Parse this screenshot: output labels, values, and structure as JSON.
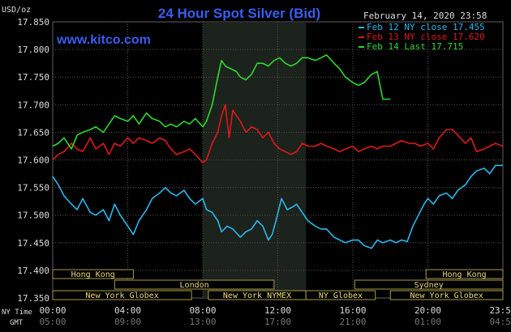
{
  "chart_data": {
    "type": "line",
    "title": "24 Hour Spot Silver (Bid)",
    "ylabel": "USD/oz",
    "date": "February 14, 2020 23:58",
    "watermark": "www.kitco.com",
    "ylim": [
      17.35,
      17.85
    ],
    "xlim": [
      0,
      24
    ],
    "grid": true,
    "legend_position": "top-right",
    "yticks": [
      "17.850",
      "17.800",
      "17.750",
      "17.700",
      "17.650",
      "17.600",
      "17.550",
      "17.500",
      "17.450",
      "17.400",
      "17.350"
    ],
    "xticks_ny": [
      "00:00",
      "04:00",
      "08:00",
      "12:00",
      "16:00",
      "20:00",
      "23:59"
    ],
    "xticks_gmt": [
      "05:00",
      "09:00",
      "13:00",
      "17:00",
      "21:00",
      "01:00",
      "04:59"
    ],
    "xtick_labels": {
      "ny": "NY Time",
      "gmt": "GMT"
    },
    "series": [
      {
        "name": "Feb 12 NY close 17.455",
        "color": "#29b8ec",
        "x": [
          0,
          0.3,
          0.6,
          1,
          1.3,
          1.6,
          2,
          2.3,
          2.7,
          3,
          3.3,
          3.6,
          4,
          4.3,
          4.6,
          5,
          5.3,
          5.7,
          6,
          6.3,
          6.6,
          7,
          7.3,
          7.6,
          8,
          8.2,
          8.5,
          8.8,
          9,
          9.3,
          9.6,
          10,
          10.3,
          10.6,
          10.9,
          11.2,
          11.5,
          11.7,
          11.9,
          12.2,
          12.5,
          12.8,
          13,
          13.3,
          13.6,
          14,
          14.3,
          14.6,
          15,
          15.3,
          15.6,
          16,
          16.3,
          16.6,
          17,
          17.3,
          17.6,
          18,
          18.3,
          18.6,
          18.9,
          19.2,
          19.5,
          19.8,
          20,
          20.3,
          20.6,
          21,
          21.3,
          21.6,
          22,
          22.3,
          22.6,
          23,
          23.3,
          23.6,
          23.99
        ],
        "values": [
          17.57,
          17.555,
          17.535,
          17.52,
          17.51,
          17.53,
          17.505,
          17.5,
          17.51,
          17.49,
          17.52,
          17.5,
          17.48,
          17.465,
          17.49,
          17.51,
          17.53,
          17.54,
          17.55,
          17.54,
          17.535,
          17.545,
          17.53,
          17.52,
          17.53,
          17.51,
          17.505,
          17.49,
          17.47,
          17.48,
          17.475,
          17.46,
          17.47,
          17.475,
          17.49,
          17.48,
          17.455,
          17.465,
          17.49,
          17.53,
          17.51,
          17.515,
          17.52,
          17.505,
          17.49,
          17.48,
          17.475,
          17.475,
          17.46,
          17.455,
          17.45,
          17.455,
          17.455,
          17.445,
          17.44,
          17.455,
          17.45,
          17.455,
          17.45,
          17.455,
          17.452,
          17.48,
          17.5,
          17.52,
          17.53,
          17.52,
          17.535,
          17.54,
          17.53,
          17.545,
          17.555,
          17.57,
          17.58,
          17.585,
          17.575,
          17.59,
          17.59
        ]
      },
      {
        "name": "Feb 13 NY close 17.620",
        "color": "#e01818",
        "x": [
          0,
          0.3,
          0.6,
          1,
          1.3,
          1.6,
          2,
          2.3,
          2.7,
          3,
          3.3,
          3.6,
          4,
          4.3,
          4.6,
          5,
          5.3,
          5.7,
          6,
          6.3,
          6.6,
          7,
          7.3,
          7.6,
          8,
          8.2,
          8.5,
          8.8,
          9,
          9.2,
          9.4,
          9.6,
          9.8,
          10,
          10.3,
          10.6,
          10.9,
          11.2,
          11.5,
          11.8,
          12.1,
          12.4,
          12.7,
          13,
          13.3,
          13.6,
          14,
          14.3,
          14.6,
          15,
          15.3,
          15.6,
          16,
          16.3,
          16.6,
          17,
          17.3,
          17.6,
          18,
          18.3,
          18.6,
          19,
          19.3,
          19.6,
          20,
          20.3,
          20.6,
          21,
          21.3,
          21.6,
          22,
          22.3,
          22.6,
          23,
          23.3,
          23.6,
          23.99
        ],
        "values": [
          17.6,
          17.61,
          17.615,
          17.63,
          17.62,
          17.615,
          17.64,
          17.62,
          17.63,
          17.61,
          17.63,
          17.625,
          17.64,
          17.63,
          17.64,
          17.635,
          17.63,
          17.64,
          17.635,
          17.62,
          17.61,
          17.615,
          17.62,
          17.61,
          17.595,
          17.6,
          17.63,
          17.65,
          17.68,
          17.7,
          17.64,
          17.69,
          17.68,
          17.67,
          17.65,
          17.66,
          17.655,
          17.64,
          17.65,
          17.63,
          17.62,
          17.615,
          17.61,
          17.615,
          17.63,
          17.625,
          17.625,
          17.63,
          17.625,
          17.62,
          17.615,
          17.62,
          17.625,
          17.615,
          17.62,
          17.625,
          17.62,
          17.625,
          17.625,
          17.63,
          17.635,
          17.63,
          17.63,
          17.625,
          17.63,
          17.62,
          17.64,
          17.655,
          17.655,
          17.645,
          17.63,
          17.64,
          17.615,
          17.62,
          17.625,
          17.63,
          17.625
        ]
      },
      {
        "name": "Feb 14 Last 17.715",
        "color": "#2ed82e",
        "x": [
          0,
          0.3,
          0.6,
          1,
          1.3,
          1.6,
          2,
          2.3,
          2.7,
          3,
          3.3,
          3.6,
          4,
          4.3,
          4.6,
          5,
          5.3,
          5.7,
          6,
          6.3,
          6.6,
          7,
          7.3,
          7.6,
          8,
          8.2,
          8.5,
          8.8,
          9,
          9.2,
          9.5,
          9.8,
          10,
          10.3,
          10.6,
          10.9,
          11.2,
          11.5,
          11.8,
          12.1,
          12.4,
          12.7,
          13,
          13.3,
          13.6,
          14,
          14.3,
          14.6,
          15,
          15.3,
          15.6,
          16,
          16.3,
          16.6,
          17,
          17.3,
          17.6,
          18
        ],
        "values": [
          17.625,
          17.63,
          17.64,
          17.62,
          17.645,
          17.65,
          17.655,
          17.66,
          17.65,
          17.665,
          17.68,
          17.675,
          17.67,
          17.68,
          17.665,
          17.685,
          17.675,
          17.67,
          17.66,
          17.665,
          17.66,
          17.67,
          17.665,
          17.675,
          17.66,
          17.67,
          17.7,
          17.75,
          17.78,
          17.77,
          17.765,
          17.76,
          17.75,
          17.745,
          17.755,
          17.775,
          17.775,
          17.77,
          17.78,
          17.785,
          17.775,
          17.77,
          17.775,
          17.785,
          17.785,
          17.78,
          17.785,
          17.79,
          17.775,
          17.765,
          17.75,
          17.74,
          17.735,
          17.74,
          17.755,
          17.76,
          17.71,
          17.71
        ]
      }
    ],
    "sessions": [
      {
        "name": "Hong Kong",
        "start": 0,
        "end": 4.3,
        "row": 0
      },
      {
        "name": "London",
        "start": 3.3,
        "end": 11.8,
        "row": 1
      },
      {
        "name": "New York Globex",
        "start": 0,
        "end": 7.4,
        "row": 2
      },
      {
        "name": "New York NYMEX",
        "start": 8.3,
        "end": 13.5,
        "row": 2
      },
      {
        "name": "NY Globex",
        "start": 13.5,
        "end": 17.2,
        "row": 2
      },
      {
        "name": "Hong Kong",
        "start": 19.9,
        "end": 24,
        "row": 0
      },
      {
        "name": "Sydney",
        "start": 16.1,
        "end": 24,
        "row": 1
      },
      {
        "name": "New York Globex",
        "start": 18.0,
        "end": 24,
        "row": 2
      }
    ],
    "shaded_region": [
      8.0,
      13.5
    ]
  }
}
